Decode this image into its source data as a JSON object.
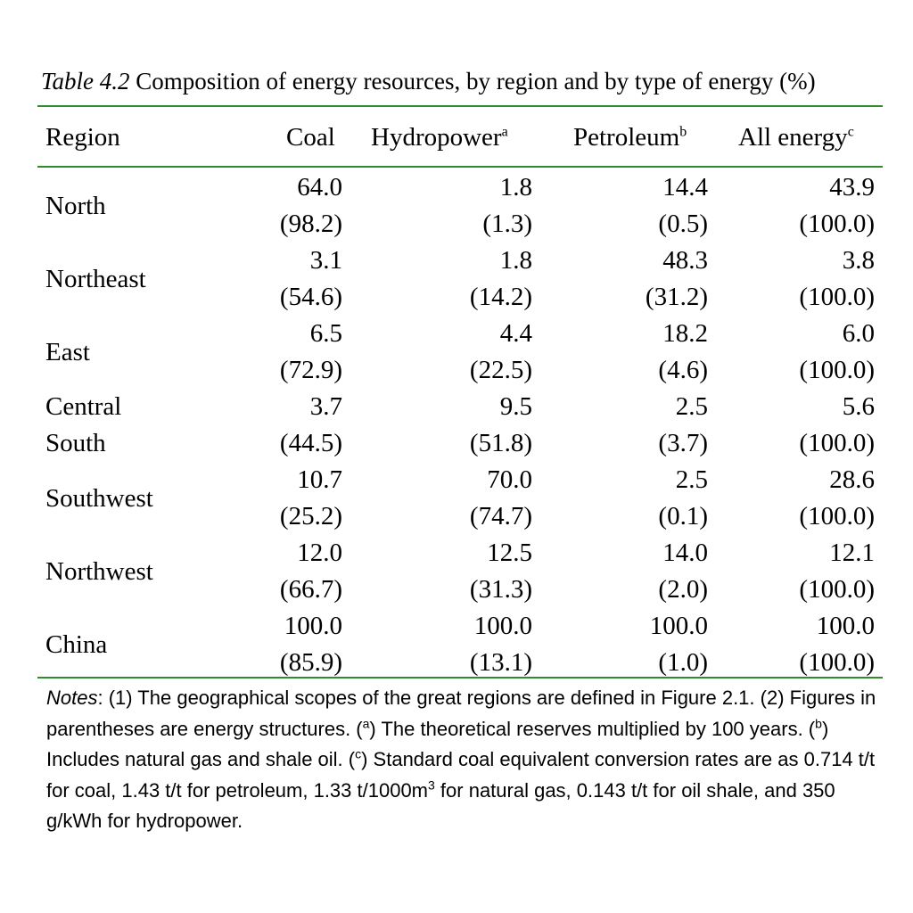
{
  "caption": {
    "label": "Table 4.2",
    "text": " Composition of energy resources, by region and by type of energy (%)"
  },
  "headers": {
    "region": "Region",
    "coal": "Coal",
    "hydropower": "Hydropower",
    "hydropower_sup": "a",
    "petroleum": "Petroleum",
    "petroleum_sup": "b",
    "all_energy": "All energy",
    "all_energy_sup": "c"
  },
  "rows": [
    {
      "region": [
        "North"
      ],
      "values": [
        [
          "64.0",
          "(98.2)"
        ],
        [
          "1.8",
          "(1.3)"
        ],
        [
          "14.4",
          "(0.5)"
        ],
        [
          "43.9",
          "(100.0)"
        ]
      ]
    },
    {
      "region": [
        "Northeast"
      ],
      "values": [
        [
          "3.1",
          "(54.6)"
        ],
        [
          "1.8",
          "(14.2)"
        ],
        [
          "48.3",
          "(31.2)"
        ],
        [
          "3.8",
          "(100.0)"
        ]
      ]
    },
    {
      "region": [
        "East"
      ],
      "values": [
        [
          "6.5",
          "(72.9)"
        ],
        [
          "4.4",
          "(22.5)"
        ],
        [
          "18.2",
          "(4.6)"
        ],
        [
          "6.0",
          "(100.0)"
        ]
      ]
    },
    {
      "region": [
        "Central",
        "South"
      ],
      "values": [
        [
          "3.7",
          "(44.5)"
        ],
        [
          "9.5",
          "(51.8)"
        ],
        [
          "2.5",
          "(3.7)"
        ],
        [
          "5.6",
          "(100.0)"
        ]
      ]
    },
    {
      "region": [
        "Southwest"
      ],
      "values": [
        [
          "10.7",
          "(25.2)"
        ],
        [
          "70.0",
          "(74.7)"
        ],
        [
          "2.5",
          "(0.1)"
        ],
        [
          "28.6",
          "(100.0)"
        ]
      ]
    },
    {
      "region": [
        "Northwest"
      ],
      "values": [
        [
          "12.0",
          "(66.7)"
        ],
        [
          "12.5",
          "(31.3)"
        ],
        [
          "14.0",
          "(2.0)"
        ],
        [
          "12.1",
          "(100.0)"
        ]
      ]
    },
    {
      "region": [
        "China"
      ],
      "values": [
        [
          "100.0",
          "(85.9)"
        ],
        [
          "100.0",
          "(13.1)"
        ],
        [
          "100.0",
          "(1.0)"
        ],
        [
          "100.0",
          "(100.0)"
        ]
      ]
    }
  ],
  "notes": {
    "label": "Notes",
    "part1": ": (1) The geographical scopes of the great regions are defined in Figure 2.1. (2) Figures in parentheses are energy structures. (",
    "sup_a": "a",
    "part2": ") The theoretical reserves multiplied by 100 years. (",
    "sup_b": "b",
    "part3": ") Includes natural gas and shale oil. (",
    "sup_c": "c",
    "part4": ") Standard coal equivalent conversion rates are as 0.714 t/t for coal, 1.43 t/t for petroleum, 1.33 t/1000m",
    "sup_3": "3",
    "part5": " for natural gas, 0.143 t/t for oil shale, and 350 g/kWh for hydropower."
  },
  "colors": {
    "rule": "#2e8b2e",
    "text": "#000000"
  }
}
